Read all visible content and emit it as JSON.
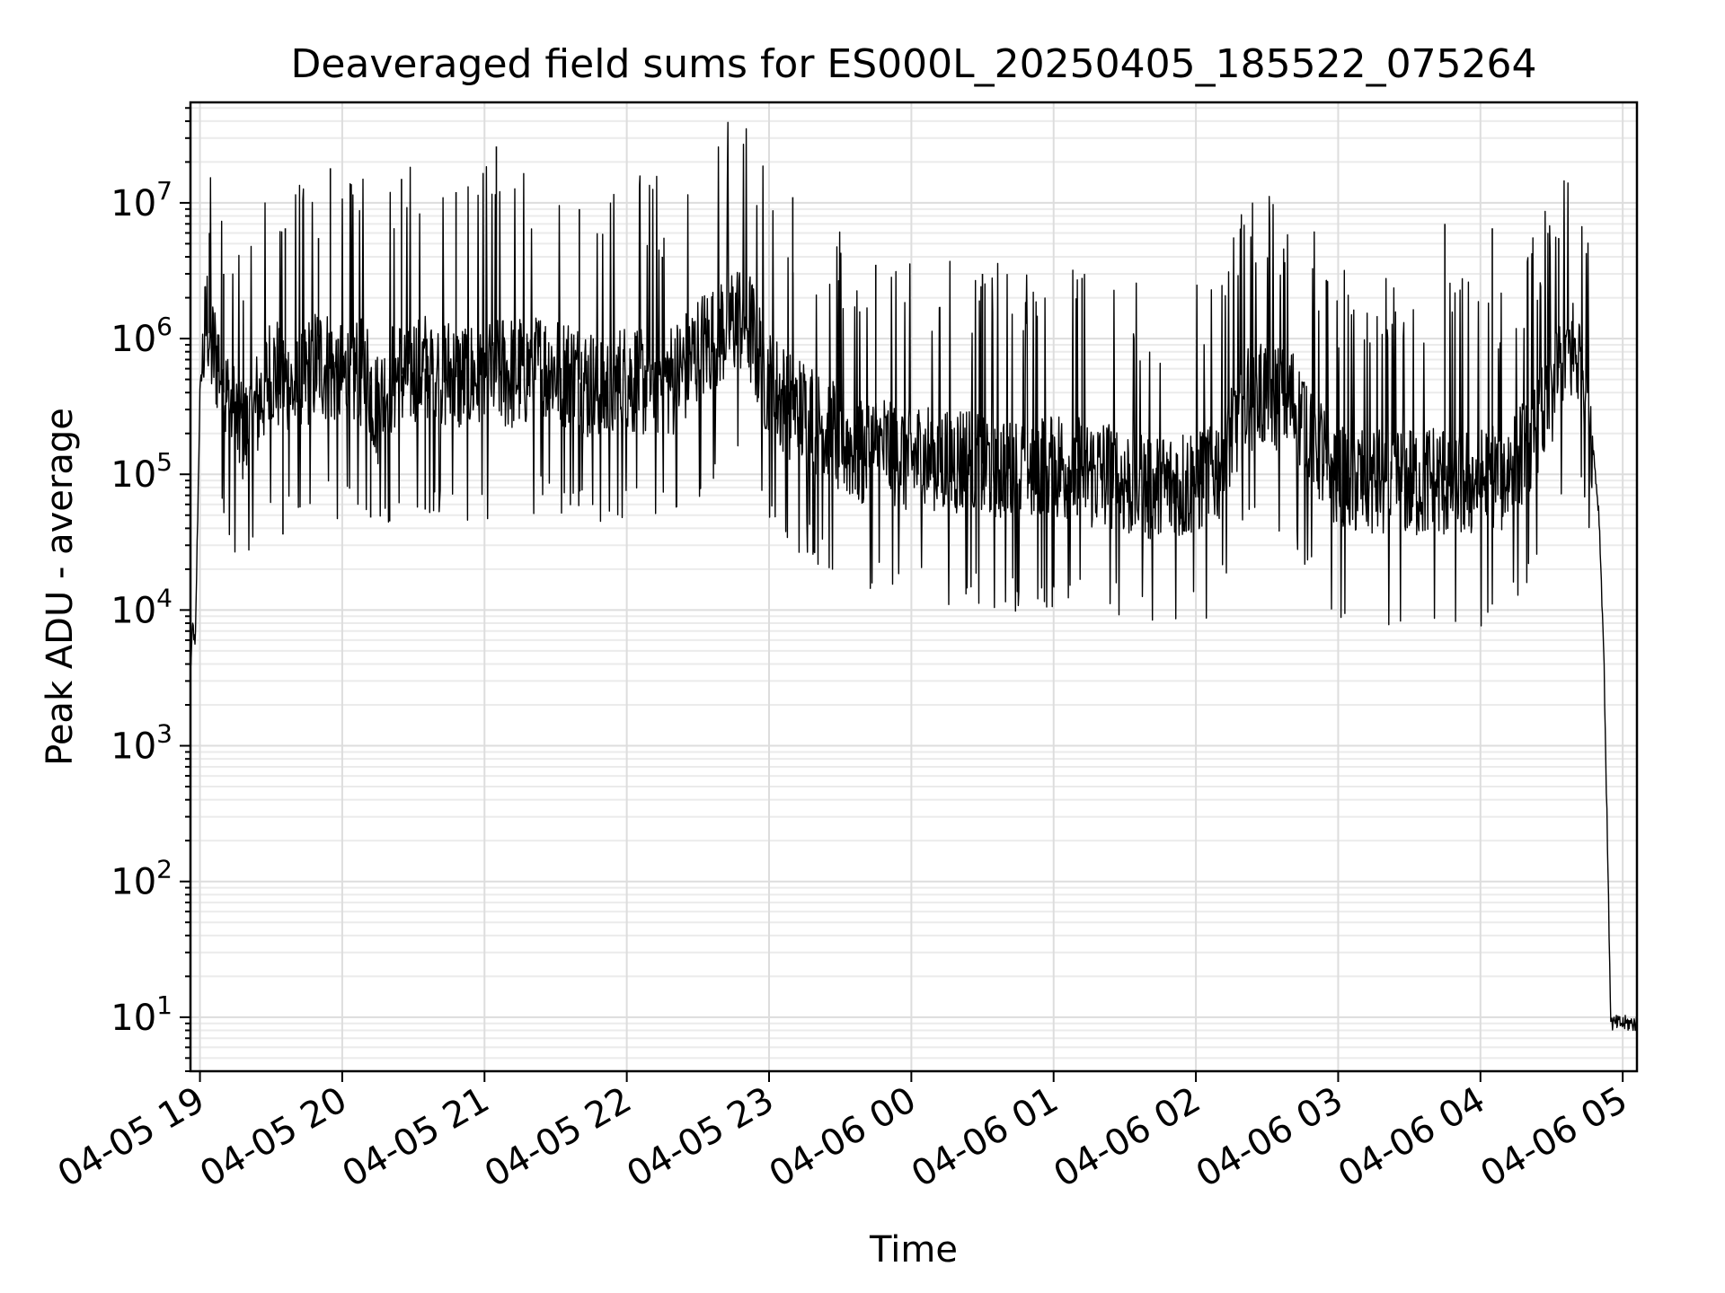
{
  "chart_data": {
    "type": "line",
    "title": "Deaveraged field sums for ES000L_20250405_185522_075264",
    "xlabel": "Time",
    "ylabel": "Peak ADU - average",
    "yscale": "log",
    "grid": true,
    "line_color": "#000000",
    "grid_color": "#dddddd",
    "xlim": [
      "2025-04-05 18:56",
      "2025-04-06 05:06"
    ],
    "ylim": [
      4,
      55000000
    ],
    "x_ticks": [
      {
        "value": "2025-04-05 19:00",
        "label": "04-05 19"
      },
      {
        "value": "2025-04-05 20:00",
        "label": "04-05 20"
      },
      {
        "value": "2025-04-05 21:00",
        "label": "04-05 21"
      },
      {
        "value": "2025-04-05 22:00",
        "label": "04-05 22"
      },
      {
        "value": "2025-04-05 23:00",
        "label": "04-05 23"
      },
      {
        "value": "2025-04-06 00:00",
        "label": "04-06 00"
      },
      {
        "value": "2025-04-06 01:00",
        "label": "04-06 01"
      },
      {
        "value": "2025-04-06 02:00",
        "label": "04-06 02"
      },
      {
        "value": "2025-04-06 03:00",
        "label": "04-06 03"
      },
      {
        "value": "2025-04-06 04:00",
        "label": "04-06 04"
      },
      {
        "value": "2025-04-06 05:00",
        "label": "04-06 05"
      }
    ],
    "y_ticks": [
      {
        "value": 10,
        "base": "10",
        "exp": "1"
      },
      {
        "value": 100,
        "base": "10",
        "exp": "2"
      },
      {
        "value": 1000,
        "base": "10",
        "exp": "3"
      },
      {
        "value": 10000,
        "base": "10",
        "exp": "4"
      },
      {
        "value": 100000,
        "base": "10",
        "exp": "5"
      },
      {
        "value": 1000000,
        "base": "10",
        "exp": "6"
      },
      {
        "value": 10000000,
        "base": "10",
        "exp": "7"
      }
    ],
    "x": [
      "2025-04-05 18:56",
      "2025-04-05 18:57",
      "2025-04-05 18:58",
      "2025-04-05 19:00",
      "2025-04-05 19:03",
      "2025-04-05 19:05",
      "2025-04-05 19:08",
      "2025-04-05 19:10",
      "2025-04-05 19:15",
      "2025-04-05 19:20",
      "2025-04-05 19:30",
      "2025-04-05 19:35",
      "2025-04-05 19:40",
      "2025-04-05 19:50",
      "2025-04-05 19:55",
      "2025-04-05 20:00",
      "2025-04-05 20:10",
      "2025-04-05 20:15",
      "2025-04-05 20:20",
      "2025-04-05 20:30",
      "2025-04-05 20:40",
      "2025-04-05 20:50",
      "2025-04-05 21:00",
      "2025-04-05 21:05",
      "2025-04-05 21:10",
      "2025-04-05 21:20",
      "2025-04-05 21:30",
      "2025-04-05 21:40",
      "2025-04-05 21:50",
      "2025-04-05 22:00",
      "2025-04-05 22:10",
      "2025-04-05 22:20",
      "2025-04-05 22:30",
      "2025-04-05 22:40",
      "2025-04-05 22:50",
      "2025-04-05 23:00",
      "2025-04-05 23:10",
      "2025-04-05 23:20",
      "2025-04-05 23:30",
      "2025-04-05 23:40",
      "2025-04-05 23:50",
      "2025-04-06 00:00",
      "2025-04-06 00:10",
      "2025-04-06 00:20",
      "2025-04-06 00:30",
      "2025-04-06 00:40",
      "2025-04-06 00:50",
      "2025-04-06 01:00",
      "2025-04-06 01:10",
      "2025-04-06 01:20",
      "2025-04-06 01:30",
      "2025-04-06 01:40",
      "2025-04-06 01:50",
      "2025-04-06 02:00",
      "2025-04-06 02:10",
      "2025-04-06 02:20",
      "2025-04-06 02:30",
      "2025-04-06 02:40",
      "2025-04-06 02:50",
      "2025-04-06 02:55",
      "2025-04-06 03:00",
      "2025-04-06 03:10",
      "2025-04-06 03:20",
      "2025-04-06 03:30",
      "2025-04-06 03:40",
      "2025-04-06 03:50",
      "2025-04-06 04:00",
      "2025-04-06 04:10",
      "2025-04-06 04:20",
      "2025-04-06 04:30",
      "2025-04-06 04:35",
      "2025-04-06 04:40",
      "2025-04-06 04:45",
      "2025-04-06 04:50",
      "2025-04-06 04:52",
      "2025-04-06 04:55",
      "2025-04-06 04:58",
      "2025-04-06 05:00",
      "2025-04-06 05:06"
    ],
    "y": [
      3500,
      8000,
      5000,
      400000,
      1500000,
      800000,
      700000,
      400000,
      250000,
      200000,
      600000,
      500000,
      400000,
      700000,
      600000,
      500000,
      600000,
      300000,
      500000,
      600000,
      600000,
      500000,
      550000,
      600000,
      550000,
      600000,
      600000,
      500000,
      400000,
      500000,
      500000,
      500000,
      800000,
      1200000,
      1500000,
      450000,
      300000,
      250000,
      180000,
      150000,
      150000,
      130000,
      130000,
      130000,
      120000,
      120000,
      110000,
      120000,
      110000,
      100000,
      90000,
      80000,
      80000,
      90000,
      120000,
      350000,
      400000,
      350000,
      200000,
      120000,
      100000,
      90000,
      90000,
      90000,
      90000,
      90000,
      90000,
      100000,
      150000,
      400000,
      800000,
      800000,
      500000,
      50000,
      5000,
      9,
      9,
      9,
      9
    ],
    "spikes": [
      {
        "x": "2025-04-05 19:04",
        "y": 6000000
      },
      {
        "x": "2025-04-05 19:10",
        "y": 3000000
      },
      {
        "x": "2025-04-05 19:36",
        "y": 6500000
      },
      {
        "x": "2025-04-05 19:50",
        "y": 5500000
      },
      {
        "x": "2025-04-05 19:55",
        "y": 18000000
      },
      {
        "x": "2025-04-05 20:25",
        "y": 15000000
      },
      {
        "x": "2025-04-05 20:48",
        "y": 12000000
      },
      {
        "x": "2025-04-05 21:05",
        "y": 26000000
      },
      {
        "x": "2025-04-05 21:40",
        "y": 9000000
      },
      {
        "x": "2025-04-05 22:15",
        "y": 4000000
      },
      {
        "x": "2025-04-05 23:10",
        "y": 11000000
      },
      {
        "x": "2025-04-05 23:45",
        "y": 3500000
      },
      {
        "x": "2025-04-06 00:30",
        "y": 3000000
      },
      {
        "x": "2025-04-06 01:12",
        "y": 2800000
      },
      {
        "x": "2025-04-06 02:55",
        "y": 2700000
      },
      {
        "x": "2025-04-06 03:45",
        "y": 7000000
      },
      {
        "x": "2025-04-06 04:05",
        "y": 6500000
      },
      {
        "x": "2025-04-06 04:33",
        "y": 5500000
      }
    ],
    "dips": [
      {
        "x": "2025-04-05 19:35",
        "y": 36000
      },
      {
        "x": "2025-04-05 20:12",
        "y": 48000
      },
      {
        "x": "2025-04-05 20:20",
        "y": 45000
      },
      {
        "x": "2025-04-05 20:35",
        "y": 55000
      },
      {
        "x": "2025-04-06 01:10",
        "y": 50000
      },
      {
        "x": "2025-04-06 03:05",
        "y": 55000
      }
    ]
  }
}
